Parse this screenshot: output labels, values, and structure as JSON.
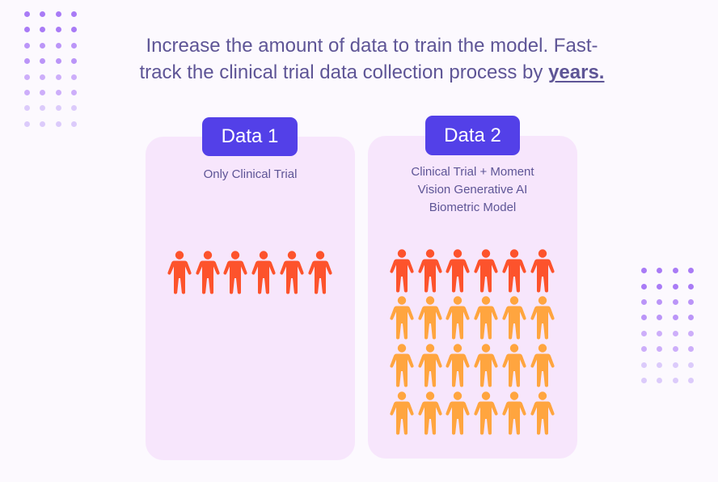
{
  "headline": {
    "line1": "Increase the amount of data to train the model. Fast-",
    "line2_prefix": "track the clinical trial data collection process by ",
    "emphasis": "years."
  },
  "colors": {
    "background": "#fcf9fe",
    "text": "#5e5596",
    "badge": "#5340e8",
    "card": "#f7e6fc",
    "person_clinical": "#fd532c",
    "person_generated": "#ffa53f",
    "dots": [
      "#a97bf6",
      "#a97bf6",
      "#bb95f8",
      "#bb95f8",
      "#cdaefa",
      "#cdaefa",
      "#dccbfb",
      "#dccbfb"
    ]
  },
  "cards": [
    {
      "badge": "Data 1",
      "description": [
        "Only Clinical Trial"
      ],
      "rows": [
        {
          "type": "clinical",
          "count": 6
        }
      ]
    },
    {
      "badge": "Data 2",
      "description": [
        "Clinical Trial + Moment",
        "Vision Generative AI",
        "Biometric Model"
      ],
      "rows": [
        {
          "type": "clinical",
          "count": 6
        },
        {
          "type": "generated",
          "count": 6
        },
        {
          "type": "generated",
          "count": 6
        },
        {
          "type": "generated",
          "count": 6
        }
      ]
    }
  ],
  "icons": {
    "person": "person-icon",
    "dot": "dot-decoration"
  }
}
